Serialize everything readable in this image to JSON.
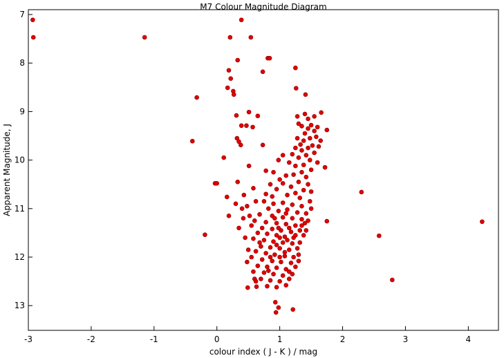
{
  "chart_data": {
    "type": "scatter",
    "title": "M7 Colour Magnitude Diagram",
    "x_label": "colour index ( J - K ) / mag",
    "y_label": "Apparent Magnitude, J",
    "color": "#e00000",
    "edge_color": "#8b0000",
    "grid": false,
    "xlim": [
      -3,
      4.48
    ],
    "ylim": [
      13.51,
      6.9
    ],
    "xticks": [
      -3,
      -2,
      -1,
      0,
      1,
      2,
      3,
      4
    ],
    "yticks": [
      7,
      8,
      9,
      10,
      11,
      12,
      13
    ],
    "x": [
      -2.93,
      -2.92,
      -1.15,
      0.39,
      0.21,
      0.54,
      0.81,
      0.84,
      0.33,
      0.19,
      0.73,
      1.25,
      0.22,
      -0.32,
      -0.39,
      0.17,
      0.26,
      0.27,
      1.26,
      1.41,
      0.51,
      0.31,
      0.65,
      0.39,
      0.47,
      0.57,
      0.32,
      0.35,
      0.38,
      0.73,
      0.11,
      0.51,
      0.78,
      -0.03,
      0.0,
      0.33,
      0.58,
      0.16,
      0.43,
      2.3,
      -0.19,
      0.19,
      2.58,
      4.22,
      1.75,
      2.79,
      0.49,
      0.63,
      0.93,
      0.98,
      0.94,
      1.21,
      1.75,
      1.66,
      1.72,
      1.3,
      1.35,
      1.45,
      1.5,
      1.55,
      1.6,
      1.4,
      1.48,
      1.58,
      1.65,
      1.38,
      1.28,
      1.52,
      1.62,
      1.45,
      1.35,
      1.25,
      1.55,
      1.42,
      1.3,
      1.2,
      1.48,
      1.6,
      1.38,
      1.25,
      1.15,
      1.5,
      1.35,
      1.22,
      1.42,
      1.1,
      1.3,
      1.45,
      1.18,
      1.05,
      1.38,
      1.25,
      1.5,
      1.12,
      1.32,
      1.45,
      1.4,
      1.28,
      1.55,
      1.33,
      1.05,
      0.98,
      0.9,
      1.0,
      0.85,
      0.95,
      0.75,
      0.9,
      1.05,
      1.2,
      1.35,
      1.48,
      0.82,
      0.98,
      1.12,
      1.28,
      1.42,
      0.68,
      0.88,
      1.05,
      1.2,
      1.35,
      0.6,
      0.78,
      0.95,
      1.1,
      1.25,
      1.4,
      0.55,
      0.72,
      0.88,
      1.02,
      1.18,
      1.32,
      0.65,
      0.8,
      0.95,
      1.08,
      1.22,
      1.38,
      0.58,
      0.75,
      0.9,
      1.05,
      1.2,
      1.32,
      0.7,
      0.85,
      1.0,
      1.15,
      1.28,
      0.62,
      0.78,
      0.92,
      1.08,
      1.22,
      0.55,
      0.72,
      0.88,
      1.02,
      1.18,
      1.3,
      0.65,
      0.8,
      0.95,
      1.1,
      1.25,
      0.58,
      0.75,
      0.9,
      1.05,
      1.2,
      0.7,
      0.85,
      1.0,
      1.15,
      0.8,
      0.95,
      1.1,
      0.5,
      0.48,
      0.6,
      0.62,
      1.45,
      1.5,
      1.42,
      0.35,
      0.42,
      0.45,
      0.52,
      0.48,
      0.62,
      1.0,
      1.12,
      0.98,
      1.15,
      1.08,
      0.95,
      0.85,
      1.0,
      1.1,
      0.92,
      1.25,
      1.3,
      0.68,
      0.82,
      1.15,
      1.35,
      0.4,
      0.3,
      0.88,
      0.78
    ],
    "values": [
      7.11,
      7.47,
      7.47,
      7.11,
      7.47,
      7.47,
      7.9,
      7.9,
      7.94,
      8.15,
      8.18,
      8.1,
      8.32,
      8.71,
      9.61,
      8.51,
      8.58,
      8.65,
      8.52,
      8.65,
      9.01,
      9.08,
      9.09,
      9.29,
      9.29,
      9.32,
      9.55,
      9.62,
      9.69,
      9.69,
      9.95,
      10.12,
      10.22,
      10.48,
      10.48,
      10.45,
      10.58,
      10.76,
      10.72,
      10.66,
      11.54,
      11.15,
      11.56,
      11.27,
      11.26,
      12.47,
      12.63,
      12.61,
      12.93,
      13.04,
      13.14,
      13.08,
      9.38,
      9.02,
      10.15,
      9.25,
      9.3,
      9.35,
      9.28,
      9.4,
      9.32,
      9.45,
      9.55,
      9.52,
      9.6,
      9.6,
      9.55,
      9.7,
      9.72,
      9.75,
      9.8,
      9.75,
      9.85,
      9.9,
      9.95,
      9.88,
      10.0,
      10.05,
      10.1,
      10.12,
      10.05,
      10.2,
      10.25,
      10.3,
      10.35,
      10.32,
      10.45,
      10.5,
      10.55,
      10.48,
      10.62,
      10.68,
      10.65,
      10.72,
      10.78,
      9.15,
      9.05,
      9.1,
      9.1,
      9.68,
      9.9,
      10.0,
      10.25,
      10.4,
      10.5,
      10.6,
      10.85,
      10.9,
      10.88,
      10.92,
      10.95,
      10.85,
      11.0,
      11.05,
      11.02,
      11.08,
      11.1,
      11.12,
      11.15,
      11.18,
      11.2,
      11.22,
      11.25,
      11.28,
      11.3,
      11.32,
      11.35,
      11.3,
      11.35,
      11.4,
      11.42,
      11.45,
      11.48,
      11.45,
      11.5,
      11.52,
      11.55,
      11.58,
      11.6,
      11.55,
      11.62,
      11.65,
      11.68,
      11.7,
      11.72,
      11.7,
      11.78,
      11.8,
      11.82,
      11.85,
      11.82,
      11.88,
      11.92,
      11.95,
      11.98,
      12.0,
      12.0,
      12.05,
      12.08,
      12.1,
      12.12,
      12.08,
      12.18,
      12.2,
      12.22,
      12.25,
      12.2,
      12.3,
      12.32,
      12.35,
      12.38,
      12.35,
      12.45,
      12.48,
      12.5,
      12.45,
      12.6,
      12.62,
      12.58,
      11.85,
      12.1,
      12.45,
      12.5,
      11.25,
      11.0,
      11.45,
      11.4,
      11.2,
      11.6,
      11.15,
      10.95,
      10.85,
      11.6,
      11.65,
      11.4,
      11.4,
      11.9,
      11.75,
      12.0,
      12.0,
      11.1,
      11.2,
      11.55,
      11.95,
      11.7,
      12.28,
      12.3,
      11.35,
      11.0,
      10.9,
      10.75,
      10.7
    ]
  }
}
